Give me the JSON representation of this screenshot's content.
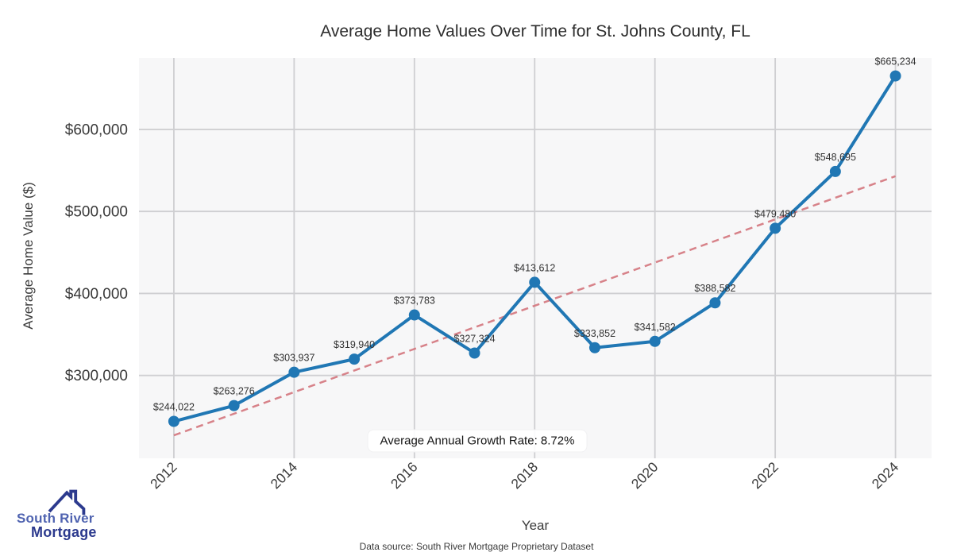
{
  "chart_data": {
    "type": "line",
    "title": "Average Home Values Over Time for St. Johns County, FL",
    "xlabel": "Year",
    "ylabel": "Average Home Value ($)",
    "x": [
      2012,
      2013,
      2014,
      2015,
      2016,
      2017,
      2018,
      2019,
      2020,
      2021,
      2022,
      2023,
      2024
    ],
    "series": [
      {
        "name": "Average Home Value",
        "color": "#2077b4",
        "values": [
          244022,
          263276,
          303937,
          319940,
          373783,
          327324,
          413612,
          333852,
          341582,
          388582,
          479480,
          548695,
          665234
        ]
      }
    ],
    "point_labels": [
      "$244,022",
      "$263,276",
      "$303,937",
      "$319,940",
      "$373,783",
      "$327,324",
      "$413,612",
      "$333,852",
      "$341,582",
      "$388,582",
      "$479,480",
      "$548,695",
      "$665,234"
    ],
    "trend": {
      "name": "growth-trend-line",
      "style": "dashed",
      "color": "#d4767e",
      "x": [
        2012,
        2024
      ],
      "values": [
        227000,
        543000
      ]
    },
    "annotation": "Average Annual Growth Rate: 8.72%",
    "xticks": [
      2012,
      2014,
      2016,
      2018,
      2020,
      2022,
      2024
    ],
    "xtick_labels": [
      "2012",
      "2014",
      "2016",
      "2018",
      "2020",
      "2022",
      "2024"
    ],
    "yticks": [
      300000,
      400000,
      500000,
      600000
    ],
    "ytick_labels": [
      "$300,000",
      "$400,000",
      "$500,000",
      "$600,000"
    ],
    "xlim": [
      2011.42,
      2024.6
    ],
    "ylim": [
      199000,
      687100
    ],
    "grid": true,
    "legend": "none",
    "plot_bg": "#f7f7f8",
    "grid_color": "#cfcfd2",
    "tick_color": "#3a3a3a",
    "point_label_color": "#333333"
  },
  "footer": {
    "data_source": "Data source: South River Mortgage Proprietary Dataset"
  },
  "logo": {
    "line1": "South River",
    "line2": "Mortgage",
    "color1": "#4f63b0",
    "color2": "#2c3a8e"
  }
}
